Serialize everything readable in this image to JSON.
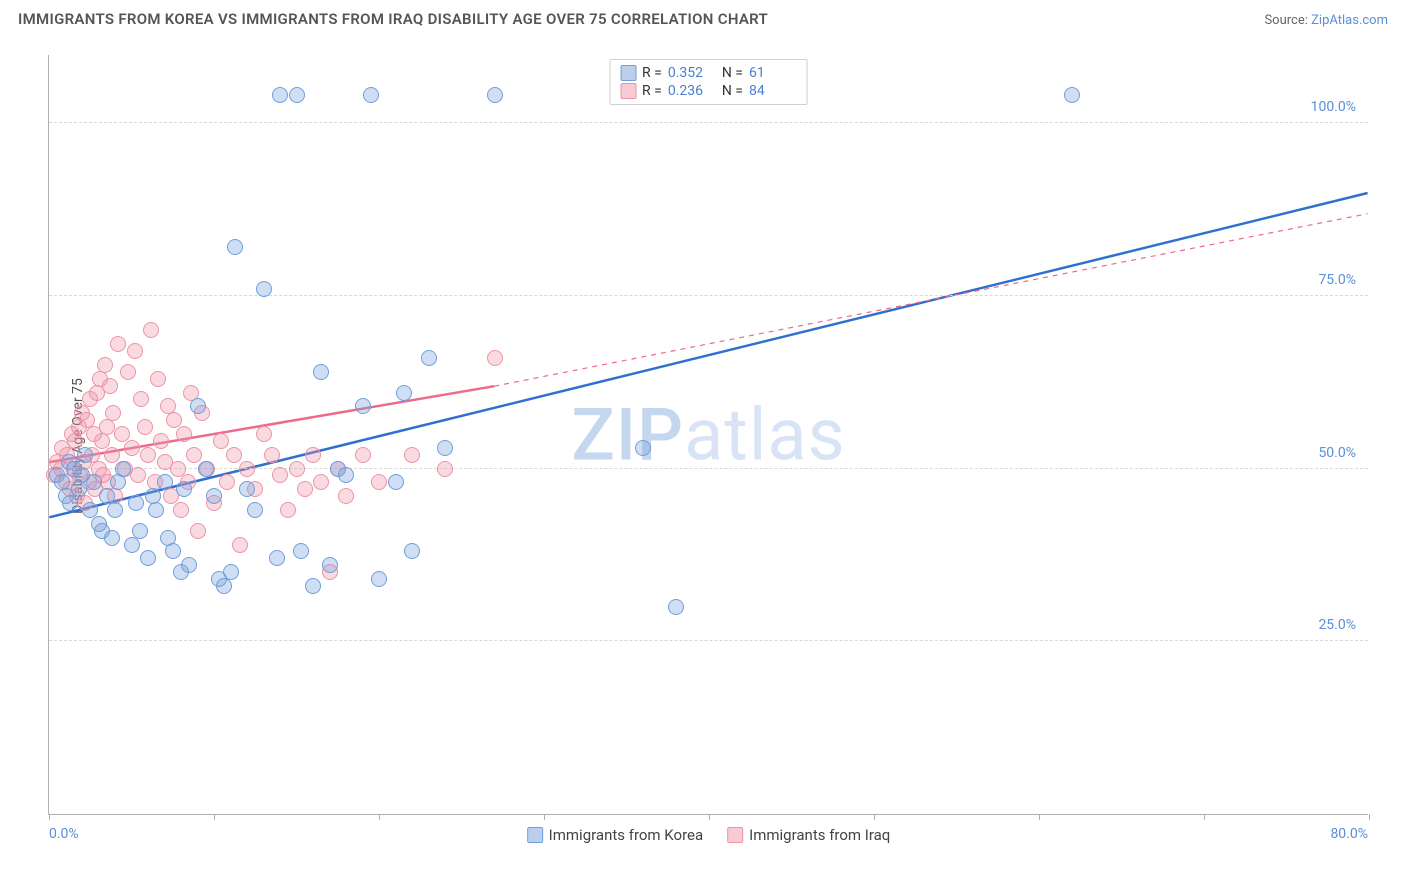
{
  "title": "IMMIGRANTS FROM KOREA VS IMMIGRANTS FROM IRAQ DISABILITY AGE OVER 75 CORRELATION CHART",
  "source_label": "Source:",
  "source_link": "ZipAtlas.com",
  "watermark": {
    "bold": "ZIP",
    "rest": "atlas"
  },
  "chart": {
    "type": "scatter",
    "ylabel": "Disability Age Over 75",
    "xlim": [
      0,
      80
    ],
    "ylim": [
      0,
      110
    ],
    "xtick_positions": [
      0,
      10,
      20,
      30,
      40,
      50,
      60,
      70,
      80
    ],
    "xaxis_end_labels": [
      "0.0%",
      "80.0%"
    ],
    "yticks": [
      25,
      50,
      75,
      100
    ],
    "ytick_labels": [
      "25.0%",
      "50.0%",
      "75.0%",
      "100.0%"
    ],
    "background_color": "#ffffff",
    "grid_color": "#d8d8d8",
    "axis_color": "#b0b0b0",
    "tick_label_color": "#5b8fd6",
    "marker_radius": 8,
    "marker_border_width": 1.2,
    "trendline_width": 2.5,
    "series": [
      {
        "name": "Immigrants from Korea",
        "fill": "rgba(120,160,220,0.35)",
        "stroke": "#6f9edb",
        "line_color": "#2f6fd0",
        "r": 0.352,
        "n": 61,
        "trend": {
          "x0": 0,
          "y0": 43,
          "x1": 80,
          "y1": 90,
          "dash": false
        },
        "points": [
          [
            0.5,
            49
          ],
          [
            0.8,
            48
          ],
          [
            1,
            46
          ],
          [
            1.2,
            51
          ],
          [
            1.3,
            45
          ],
          [
            1.5,
            50
          ],
          [
            1.8,
            47
          ],
          [
            2,
            49
          ],
          [
            2.2,
            52
          ],
          [
            2.5,
            44
          ],
          [
            2.7,
            48
          ],
          [
            3,
            42
          ],
          [
            3.2,
            41
          ],
          [
            3.5,
            46
          ],
          [
            3.8,
            40
          ],
          [
            4,
            44
          ],
          [
            4.2,
            48
          ],
          [
            4.5,
            50
          ],
          [
            5,
            39
          ],
          [
            5.3,
            45
          ],
          [
            5.5,
            41
          ],
          [
            6,
            37
          ],
          [
            6.3,
            46
          ],
          [
            6.5,
            44
          ],
          [
            7,
            48
          ],
          [
            7.2,
            40
          ],
          [
            7.5,
            38
          ],
          [
            8,
            35
          ],
          [
            8.2,
            47
          ],
          [
            8.5,
            36
          ],
          [
            9,
            59
          ],
          [
            9.5,
            50
          ],
          [
            10,
            46
          ],
          [
            10.3,
            34
          ],
          [
            10.6,
            33
          ],
          [
            11,
            35
          ],
          [
            11.3,
            82
          ],
          [
            12,
            47
          ],
          [
            12.5,
            44
          ],
          [
            13,
            76
          ],
          [
            13.8,
            37
          ],
          [
            14,
            104
          ],
          [
            15,
            104
          ],
          [
            15.3,
            38
          ],
          [
            16,
            33
          ],
          [
            16.5,
            64
          ],
          [
            17,
            36
          ],
          [
            17.5,
            50
          ],
          [
            18,
            49
          ],
          [
            19,
            59
          ],
          [
            19.5,
            104
          ],
          [
            20,
            34
          ],
          [
            21,
            48
          ],
          [
            21.5,
            61
          ],
          [
            22,
            38
          ],
          [
            23,
            66
          ],
          [
            24,
            53
          ],
          [
            27,
            104
          ],
          [
            36,
            53
          ],
          [
            38,
            30
          ],
          [
            62,
            104
          ]
        ]
      },
      {
        "name": "Immigrants from Iraq",
        "fill": "rgba(240,150,170,0.35)",
        "stroke": "#ec93a8",
        "line_color": "#ec6b8a",
        "r": 0.236,
        "n": 84,
        "trend": {
          "x0": 0,
          "y0": 51,
          "x1": 27,
          "y1": 62,
          "dash": false
        },
        "trend_ext": {
          "x0": 27,
          "y0": 62,
          "x1": 80,
          "y1": 87,
          "dash": true
        },
        "points": [
          [
            0.3,
            49
          ],
          [
            0.5,
            51
          ],
          [
            0.7,
            50
          ],
          [
            0.8,
            53
          ],
          [
            1,
            48
          ],
          [
            1.1,
            52
          ],
          [
            1.3,
            47
          ],
          [
            1.4,
            55
          ],
          [
            1.5,
            50
          ],
          [
            1.6,
            54
          ],
          [
            1.7,
            46
          ],
          [
            1.8,
            56
          ],
          [
            1.9,
            49
          ],
          [
            2,
            58
          ],
          [
            2.1,
            51
          ],
          [
            2.2,
            45
          ],
          [
            2.3,
            57
          ],
          [
            2.4,
            48
          ],
          [
            2.5,
            60
          ],
          [
            2.6,
            52
          ],
          [
            2.7,
            55
          ],
          [
            2.8,
            47
          ],
          [
            2.9,
            61
          ],
          [
            3,
            50
          ],
          [
            3.1,
            63
          ],
          [
            3.2,
            54
          ],
          [
            3.3,
            49
          ],
          [
            3.4,
            65
          ],
          [
            3.5,
            56
          ],
          [
            3.6,
            48
          ],
          [
            3.7,
            62
          ],
          [
            3.8,
            52
          ],
          [
            3.9,
            58
          ],
          [
            4,
            46
          ],
          [
            4.2,
            68
          ],
          [
            4.4,
            55
          ],
          [
            4.6,
            50
          ],
          [
            4.8,
            64
          ],
          [
            5,
            53
          ],
          [
            5.2,
            67
          ],
          [
            5.4,
            49
          ],
          [
            5.6,
            60
          ],
          [
            5.8,
            56
          ],
          [
            6,
            52
          ],
          [
            6.2,
            70
          ],
          [
            6.4,
            48
          ],
          [
            6.6,
            63
          ],
          [
            6.8,
            54
          ],
          [
            7,
            51
          ],
          [
            7.2,
            59
          ],
          [
            7.4,
            46
          ],
          [
            7.6,
            57
          ],
          [
            7.8,
            50
          ],
          [
            8,
            44
          ],
          [
            8.2,
            55
          ],
          [
            8.4,
            48
          ],
          [
            8.6,
            61
          ],
          [
            8.8,
            52
          ],
          [
            9,
            41
          ],
          [
            9.3,
            58
          ],
          [
            9.6,
            50
          ],
          [
            10,
            45
          ],
          [
            10.4,
            54
          ],
          [
            10.8,
            48
          ],
          [
            11.2,
            52
          ],
          [
            11.6,
            39
          ],
          [
            12,
            50
          ],
          [
            12.5,
            47
          ],
          [
            13,
            55
          ],
          [
            13.5,
            52
          ],
          [
            14,
            49
          ],
          [
            14.5,
            44
          ],
          [
            15,
            50
          ],
          [
            15.5,
            47
          ],
          [
            16,
            52
          ],
          [
            16.5,
            48
          ],
          [
            17,
            35
          ],
          [
            17.5,
            50
          ],
          [
            18,
            46
          ],
          [
            19,
            52
          ],
          [
            20,
            48
          ],
          [
            22,
            52
          ],
          [
            24,
            50
          ],
          [
            27,
            66
          ]
        ]
      }
    ],
    "legend_top_labels": {
      "r": "R =",
      "n": "N ="
    },
    "legend_swatch_colors": {
      "korea": {
        "fill": "rgba(120,160,220,0.5)",
        "border": "#6f9edb"
      },
      "iraq": {
        "fill": "rgba(240,150,170,0.5)",
        "border": "#ec93a8"
      }
    }
  }
}
